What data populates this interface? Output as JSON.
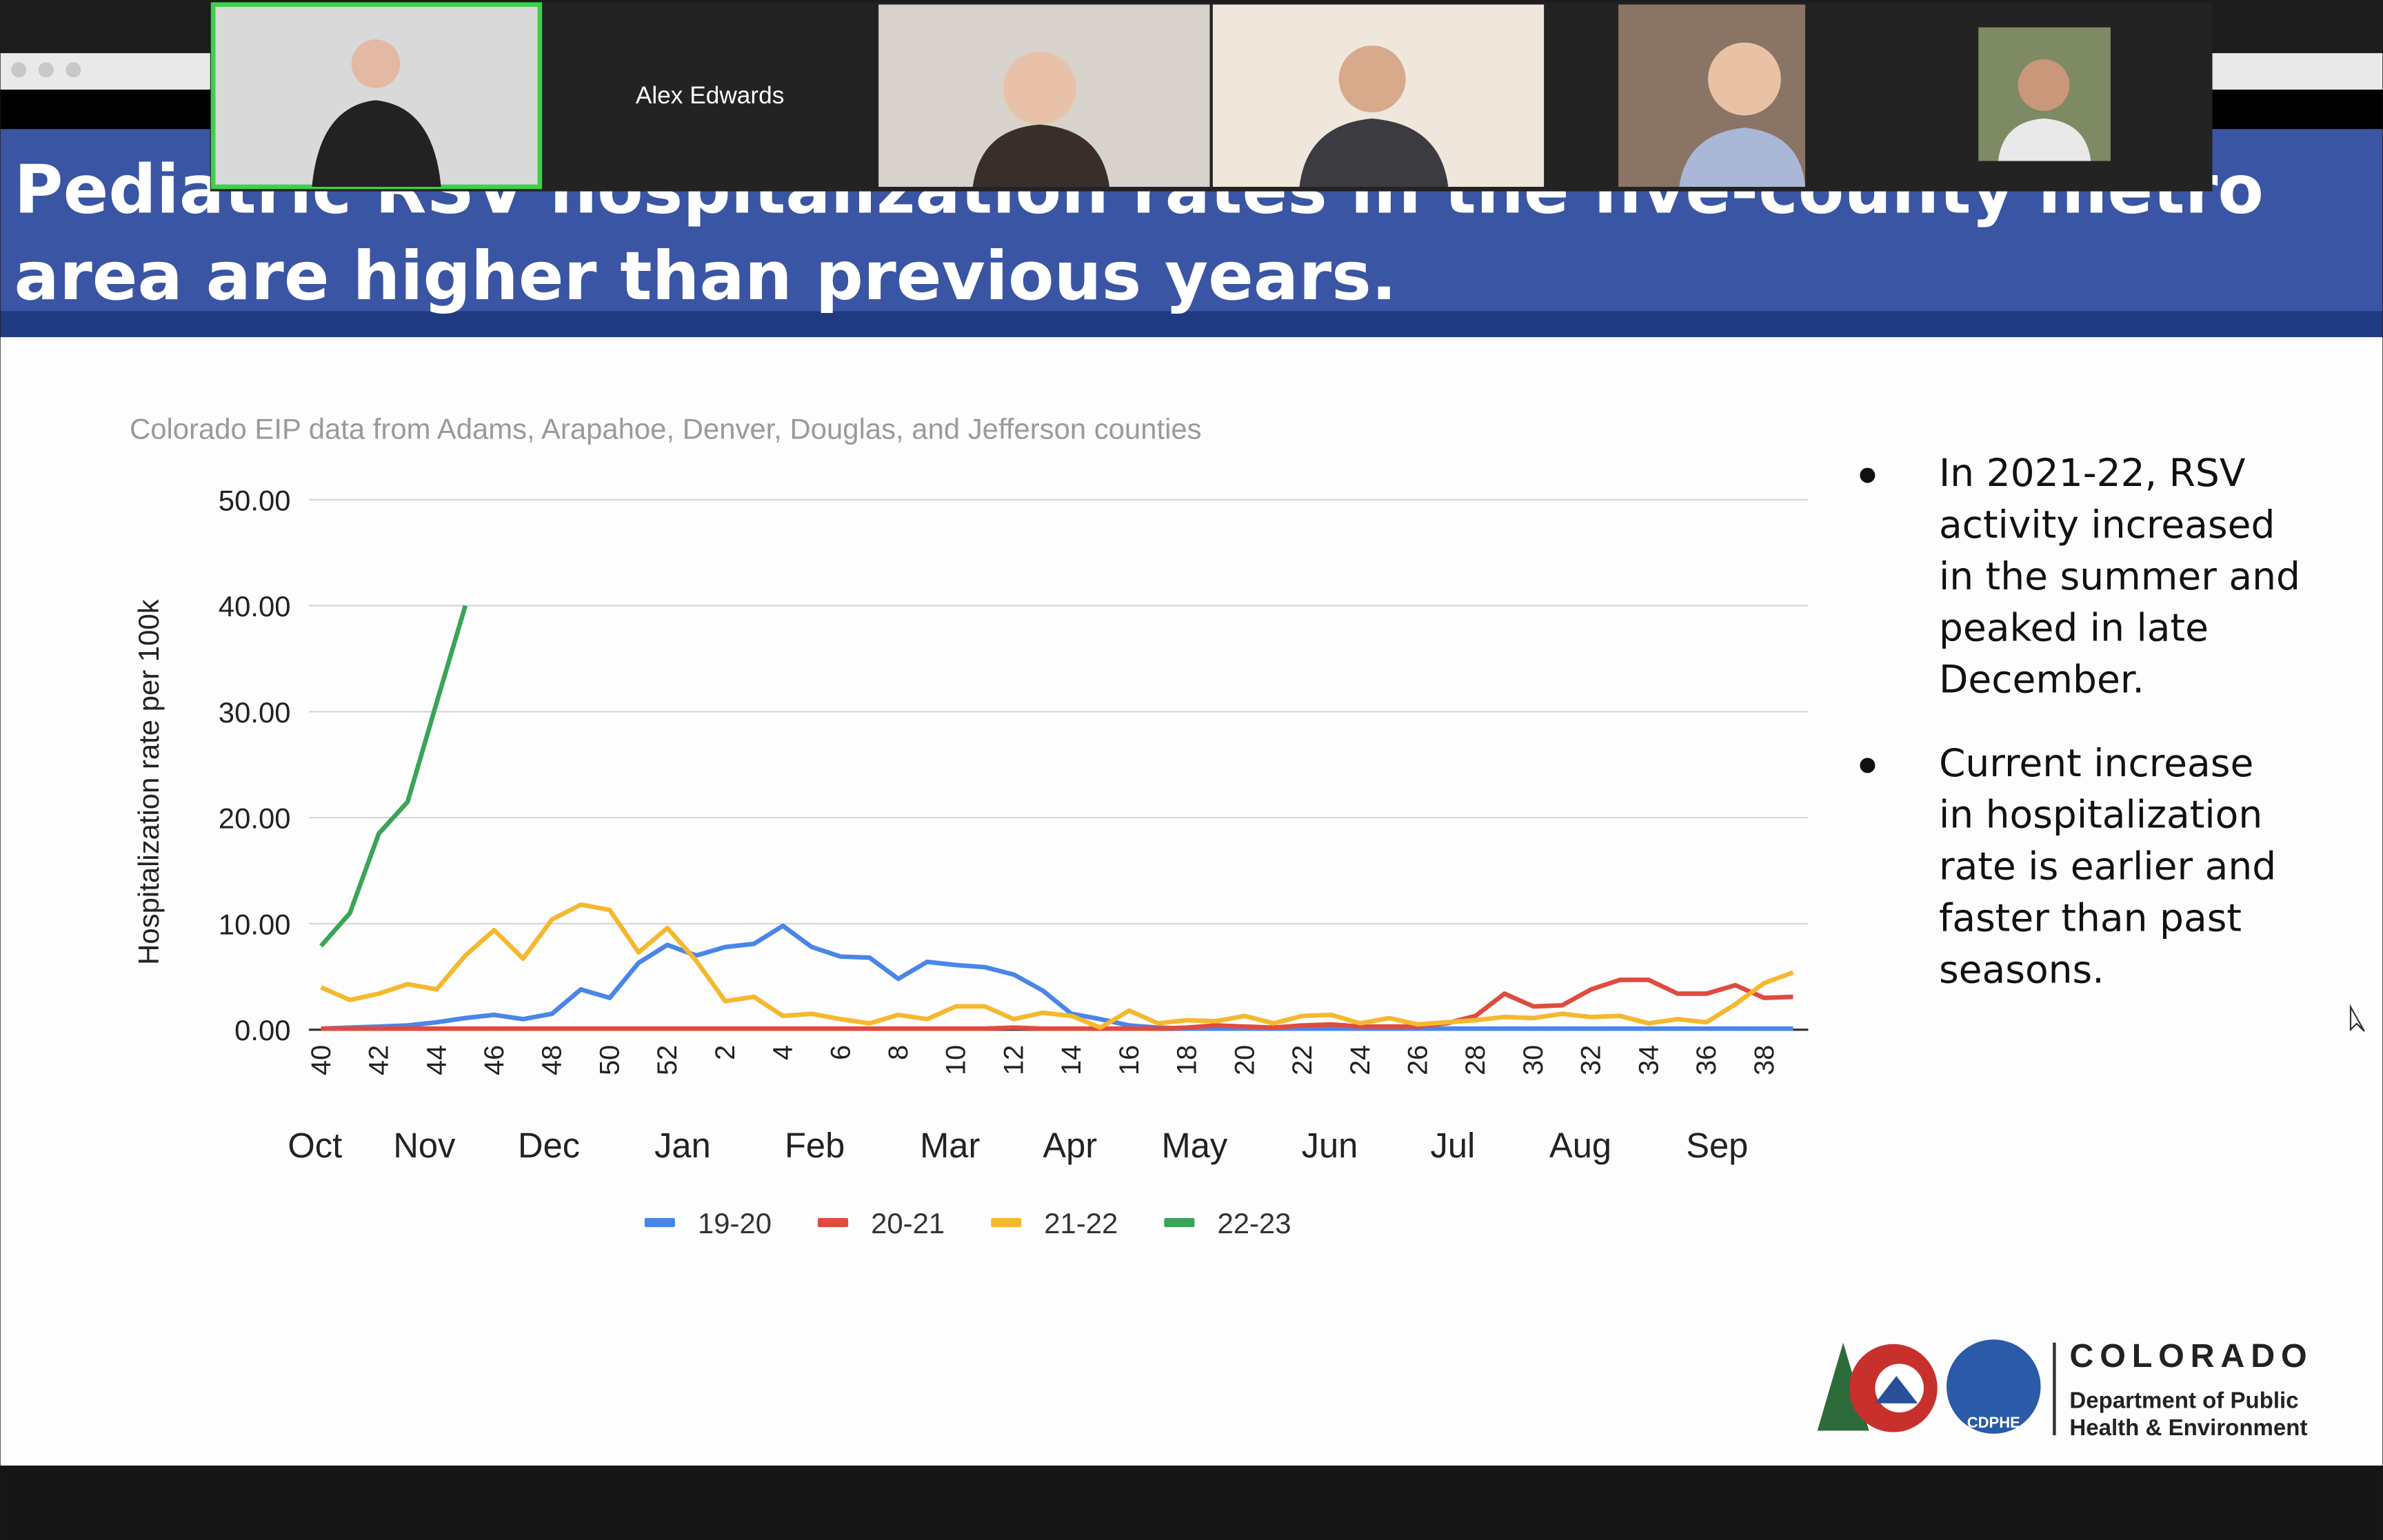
{
  "call": {
    "participant_name": "Alex Edwards"
  },
  "slide": {
    "title_line1": "Pediatric RSV hospitalization rates in the five-county metro",
    "title_line2": "area are higher than previous years.",
    "bullets": [
      [
        "In 2021-22, RSV",
        "activity increased",
        "in the summer and",
        "peaked in late",
        "December."
      ],
      [
        "Current increase",
        "in hospitalization",
        "rate is earlier and",
        "faster than past",
        "seasons."
      ]
    ],
    "logo": {
      "name": "COLORADO",
      "line1": "Department of Public",
      "line2": "Health & Environment",
      "badge": "CDPHE"
    }
  },
  "chart_data": {
    "type": "line",
    "subtitle": "Colorado EIP data from Adams, Arapahoe, Denver, Douglas, and Jefferson counties",
    "y_label": "Hospitalization rate per 100k",
    "categories": [
      "40",
      null,
      "42",
      null,
      "44",
      null,
      "46",
      null,
      "48",
      null,
      "50",
      null,
      "52",
      null,
      "2",
      null,
      "4",
      null,
      "6",
      null,
      "8",
      null,
      "10",
      null,
      "12",
      null,
      "14",
      null,
      "16",
      null,
      "18",
      null,
      "20",
      null,
      "22",
      null,
      "24",
      null,
      "26",
      null,
      "28",
      null,
      "30",
      null,
      "32",
      null,
      "34",
      null,
      "36",
      null,
      "38",
      null
    ],
    "months": [
      "Oct",
      "Nov",
      "Dec",
      "Jan",
      "Feb",
      "Mar",
      "Apr",
      "May",
      "Jun",
      "Jul",
      "Aug",
      "Sep"
    ],
    "series": [
      {
        "name": "19-20",
        "color": "#4a86e8",
        "values": [
          0.1,
          0.2,
          0.3,
          0.4,
          0.7,
          1.1,
          1.4,
          1.0,
          1.5,
          3.8,
          3.0,
          6.3,
          8.0,
          7.0,
          7.8,
          8.1,
          9.8,
          7.8,
          6.9,
          6.8,
          4.8,
          6.4,
          6.1,
          5.9,
          5.2,
          3.7,
          1.5,
          1.0,
          0.4,
          0.2,
          0.1,
          0.1,
          0.1,
          0.1,
          0.1,
          0.1,
          0.1,
          0.1,
          0.1,
          0.1,
          0.1,
          0.1,
          0.1,
          0.1,
          0.1,
          0.1,
          0.1,
          0.1,
          0.1,
          0.1,
          0.1,
          0.1
        ]
      },
      {
        "name": "20-21",
        "color": "#e04b3f",
        "values": [
          0.1,
          0.1,
          0.1,
          0.1,
          0.1,
          0.1,
          0.1,
          0.1,
          0.1,
          0.1,
          0.1,
          0.1,
          0.1,
          0.1,
          0.1,
          0.1,
          0.1,
          0.1,
          0.1,
          0.1,
          0.1,
          0.1,
          0.1,
          0.1,
          0.2,
          0.1,
          0.1,
          0.1,
          0.1,
          0.1,
          0.2,
          0.4,
          0.3,
          0.2,
          0.4,
          0.5,
          0.3,
          0.3,
          0.3,
          0.6,
          1.3,
          3.4,
          2.2,
          2.3,
          3.8,
          4.7,
          4.7,
          3.4,
          3.4,
          4.2,
          3.0,
          3.1
        ]
      },
      {
        "name": "21-22",
        "color": "#f5b82e",
        "values": [
          4.0,
          2.8,
          3.4,
          4.3,
          3.8,
          7.0,
          9.4,
          6.7,
          10.4,
          11.8,
          11.3,
          7.3,
          9.6,
          6.5,
          2.7,
          3.1,
          1.3,
          1.5,
          1.0,
          0.6,
          1.4,
          1.0,
          2.2,
          2.2,
          1.0,
          1.6,
          1.3,
          0.2,
          1.8,
          0.6,
          0.9,
          0.8,
          1.3,
          0.6,
          1.3,
          1.4,
          0.6,
          1.1,
          0.5,
          0.7,
          0.9,
          1.2,
          1.1,
          1.5,
          1.2,
          1.3,
          0.6,
          1.0,
          0.7,
          2.4,
          4.4,
          5.4
        ]
      },
      {
        "name": "22-23",
        "color": "#3aa457",
        "values": [
          7.9,
          11.0,
          18.5,
          21.5,
          30.8,
          40.0,
          null,
          null,
          null,
          null,
          null,
          null,
          null,
          null,
          null,
          null,
          null,
          null,
          null,
          null,
          null,
          null,
          null,
          null,
          null,
          null,
          null,
          null,
          null,
          null,
          null,
          null,
          null,
          null,
          null,
          null,
          null,
          null,
          null,
          null,
          null,
          null,
          null,
          null,
          null,
          null,
          null,
          null,
          null,
          null,
          null,
          null
        ]
      }
    ],
    "ylim": [
      0,
      50
    ],
    "yticks": [
      {
        "value": 0,
        "label": "0.00"
      },
      {
        "value": 10,
        "label": "10.00"
      },
      {
        "value": 20,
        "label": "20.00"
      },
      {
        "value": 30,
        "label": "30.00"
      },
      {
        "value": 40,
        "label": "40.00"
      },
      {
        "value": 50,
        "label": "50.00"
      }
    ],
    "grid": true,
    "legend": "bottom"
  }
}
